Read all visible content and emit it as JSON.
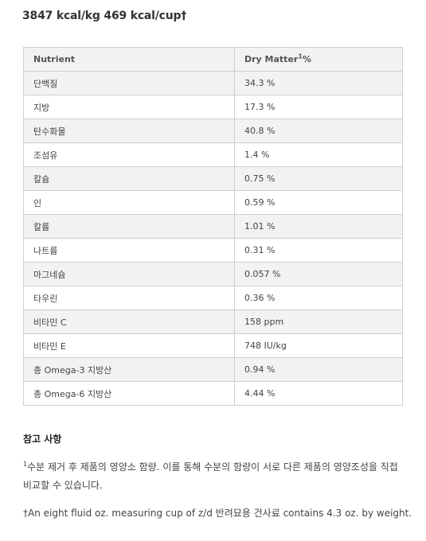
{
  "calories": "3847 kcal/kg 469 kcal/cup†",
  "table": {
    "header": {
      "nutrient": "Nutrient",
      "dry_matter": "Dry Matter",
      "dry_matter_sup": "1",
      "dry_matter_unit": "%"
    },
    "rows": [
      {
        "nutrient": "단백질",
        "value": "34.3 %"
      },
      {
        "nutrient": "지방",
        "value": "17.3 %"
      },
      {
        "nutrient": "탄수화물",
        "value": "40.8 %"
      },
      {
        "nutrient": "조섬유",
        "value": "1.4 %"
      },
      {
        "nutrient": "칼슘",
        "value": "0.75 %"
      },
      {
        "nutrient": "인",
        "value": "0.59 %"
      },
      {
        "nutrient": "칼륨",
        "value": "1.01 %"
      },
      {
        "nutrient": "나트륨",
        "value": "0.31 %"
      },
      {
        "nutrient": "마그네슘",
        "value": "0.057 %"
      },
      {
        "nutrient": "타우린",
        "value": "0.36 %"
      },
      {
        "nutrient": "비타민 C",
        "value": "158 ppm"
      },
      {
        "nutrient": "비타민 E",
        "value": "748 IU/kg"
      },
      {
        "nutrient": "총 Omega-3 지방산",
        "value": "0.94 %"
      },
      {
        "nutrient": "총 Omega-6 지방산",
        "value": "4.44 %"
      }
    ]
  },
  "notes": {
    "title": "참고 사항",
    "note1_sup": "1",
    "note1": "수분 제거 후 제품의 영양소 함량. 이를 통해 수분의 함량이 서로 다른 제품의 영양조성을 직접 비교할 수 있습니다.",
    "note2": "†An eight fluid oz. measuring cup of z/d 반려묘용 건사료 contains 4.3 oz. by weight."
  }
}
